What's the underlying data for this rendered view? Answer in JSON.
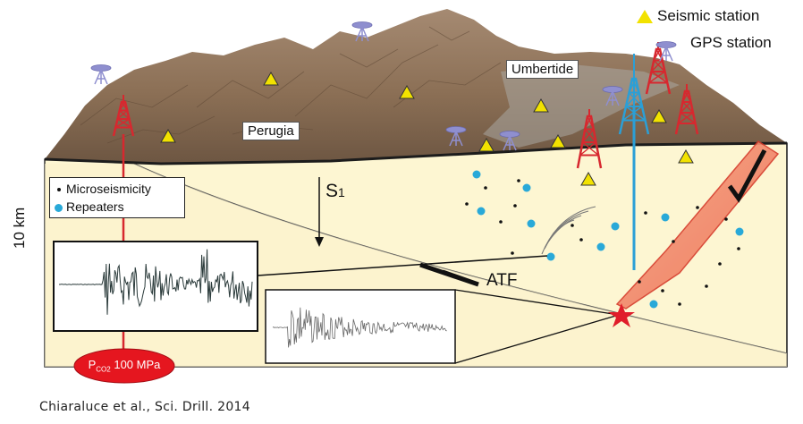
{
  "legend_key": {
    "seismic_station": "Seismic station",
    "gps_station": "GPS station"
  },
  "legend_box": {
    "microseismicity": "Microseismicity",
    "repeaters": "Repeaters"
  },
  "labels": {
    "perugia": "Perugia",
    "umbertide": "Umbertide",
    "stress": "S",
    "stress_sub": "1",
    "fault": "ATF",
    "depth": "10 km",
    "pressure_prefix": "P",
    "pressure_sub": "CO2",
    "pressure_value": "100 MPa"
  },
  "citation": "Chiaraluce et al., Sci. Drill. 2014",
  "colors": {
    "terrain": "#8b6f55",
    "subsurface": "#fdf6d2",
    "seismic_station": "#f2e200",
    "gps_station": "#8f8fcf",
    "microseismicity": "#111111",
    "repeaters": "#29a9d8",
    "derricks": "#d7282f",
    "main_derrick": "#2b9fd6",
    "fault_zone": "#f07a5a"
  },
  "icons": {
    "seismic": "triangle-icon",
    "gps": "gps-antenna-icon",
    "drill": "derrick-icon",
    "hypocenter": "star-icon"
  }
}
